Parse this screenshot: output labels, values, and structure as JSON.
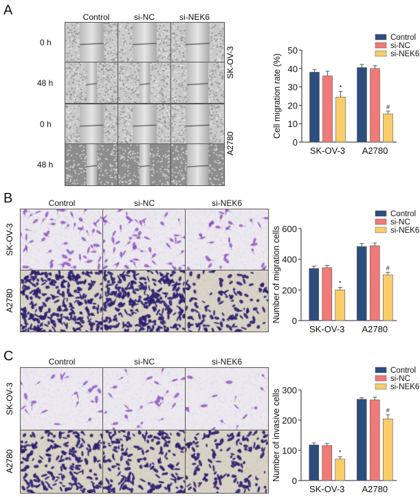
{
  "panels": {
    "A": {
      "letter": "A",
      "columns": [
        "Control",
        "si-NC",
        "si-NEK6"
      ],
      "time_labels": [
        "0 h",
        "48 h",
        "0 h",
        "48 h"
      ],
      "cell_lines": [
        "SK-OV-3",
        "A2780"
      ]
    },
    "B": {
      "letter": "B",
      "columns": [
        "Control",
        "si-NC",
        "si-NEK6"
      ],
      "cell_lines": [
        "SK-OV-3",
        "A2780"
      ]
    },
    "C": {
      "letter": "C",
      "columns": [
        "Control",
        "si-NC",
        "si-NEK6"
      ],
      "cell_lines": [
        "SK-OV-3",
        "A2780"
      ]
    }
  },
  "colors": {
    "Control": "#2e4d7f",
    "si-NC": "#f07a78",
    "si-NEK6": "#f8cd6a",
    "wound": "#a9a9a9",
    "stain_light": "#8a4fc0",
    "stain_dark": "#2a1f6e"
  },
  "chart_data": [
    {
      "type": "bar",
      "panel": "A",
      "ylabel": "Cell migration rate (%)",
      "categories": [
        "SK-OV-3",
        "A2780"
      ],
      "ylim": [
        0,
        50
      ],
      "yticks": [
        0,
        10,
        20,
        30,
        40,
        50
      ],
      "series": [
        {
          "name": "Control",
          "values": [
            38,
            40.5
          ],
          "errors": [
            1.5,
            1.7
          ]
        },
        {
          "name": "si-NC",
          "values": [
            36,
            40
          ],
          "errors": [
            2.5,
            1.5
          ]
        },
        {
          "name": "si-NEK6",
          "values": [
            24.5,
            15.3
          ],
          "errors": [
            3,
            1.5
          ]
        }
      ],
      "annotations": [
        {
          "category": "SK-OV-3",
          "series": "si-NEK6",
          "text": "*"
        },
        {
          "category": "A2780",
          "series": "si-NEK6",
          "text": "#"
        }
      ],
      "legend": "top-right"
    },
    {
      "type": "bar",
      "panel": "B",
      "ylabel": "Number of migration cells",
      "categories": [
        "SK-OV-3",
        "A2780"
      ],
      "ylim": [
        0,
        600
      ],
      "yticks": [
        0,
        200,
        400,
        600
      ],
      "series": [
        {
          "name": "Control",
          "values": [
            340,
            483
          ],
          "errors": [
            15,
            20
          ]
        },
        {
          "name": "si-NC",
          "values": [
            345,
            488
          ],
          "errors": [
            15,
            18
          ]
        },
        {
          "name": "si-NEK6",
          "values": [
            200,
            298
          ],
          "errors": [
            17,
            17
          ]
        }
      ],
      "annotations": [
        {
          "category": "SK-OV-3",
          "series": "si-NEK6",
          "text": "*"
        },
        {
          "category": "A2780",
          "series": "si-NEK6",
          "text": "#"
        }
      ],
      "legend": "top-right"
    },
    {
      "type": "bar",
      "panel": "C",
      "ylabel": "Number of invasive cells",
      "categories": [
        "SK-OV-3",
        "A2780"
      ],
      "ylim": [
        0,
        300
      ],
      "yticks": [
        0,
        100,
        200,
        300
      ],
      "series": [
        {
          "name": "Control",
          "values": [
            118,
            269
          ],
          "errors": [
            7,
            5
          ]
        },
        {
          "name": "si-NC",
          "values": [
            116,
            267
          ],
          "errors": [
            7,
            9
          ]
        },
        {
          "name": "si-NEK6",
          "values": [
            71,
            204
          ],
          "errors": [
            8,
            14
          ]
        }
      ],
      "annotations": [
        {
          "category": "SK-OV-3",
          "series": "si-NEK6",
          "text": "*"
        },
        {
          "category": "A2780",
          "series": "si-NEK6",
          "text": "#"
        }
      ],
      "legend": "top-right"
    }
  ]
}
